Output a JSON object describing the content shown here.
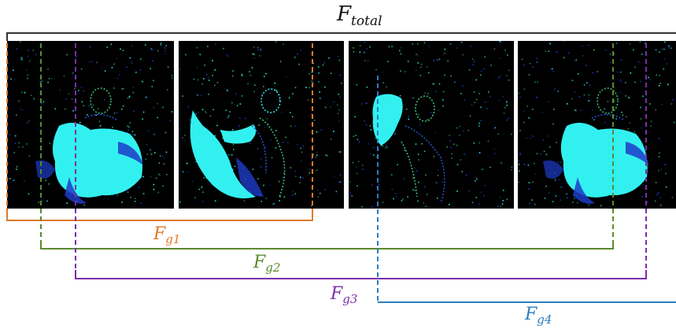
{
  "labels": {
    "total": {
      "main": "F",
      "sub": "total"
    },
    "g1": {
      "main": "F",
      "sub": "g1"
    },
    "g2": {
      "main": "F",
      "sub": "g2"
    },
    "g3": {
      "main": "F",
      "sub": "g3"
    },
    "g4": {
      "main": "F",
      "sub": "g4"
    }
  },
  "colors": {
    "total": "#333333",
    "g1": "#E07B28",
    "g2": "#5B8A2E",
    "g3": "#7B2FA8",
    "g4": "#2A7EC2",
    "panel_background": "#000000",
    "cyan": "#33F0F0",
    "blue": "#1E3CC8",
    "green": "#3FC07A"
  },
  "panels": [
    {
      "name": "event-frame-1",
      "subject": "person-arms-extended"
    },
    {
      "name": "event-frame-2",
      "subject": "person-arm-swing"
    },
    {
      "name": "event-frame-3",
      "subject": "person-hand-raised"
    },
    {
      "name": "event-frame-4",
      "subject": "person-arms-extended"
    }
  ]
}
